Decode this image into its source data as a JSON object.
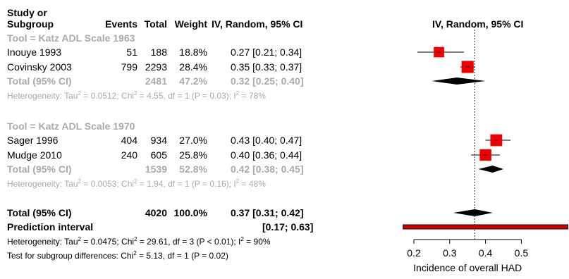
{
  "header": {
    "study_line1": "Study or",
    "study_line2": "Subgroup",
    "events": "Events",
    "total": "Total",
    "weight": "Weight",
    "ci": "IV, Random, 95% CI",
    "plot_title": "IV, Random, 95% CI"
  },
  "groups": [
    {
      "label": "Tool = Katz ADL Scale 1963",
      "studies": [
        {
          "name": "Inouye 1993",
          "events": "51",
          "total": "188",
          "weight": "18.8%",
          "ci": "0.27 [0.21; 0.34]",
          "est": 0.27,
          "lo": 0.21,
          "hi": 0.34,
          "w": 18.8
        },
        {
          "name": "Covinsky 2003",
          "events": "799",
          "total": "2293",
          "weight": "28.4%",
          "ci": "0.35 [0.33; 0.37]",
          "est": 0.35,
          "lo": 0.33,
          "hi": 0.37,
          "w": 28.4
        }
      ],
      "total": {
        "label": "Total (95% CI)",
        "total": "2481",
        "weight": "47.2%",
        "ci": "0.32 [0.25; 0.40]",
        "est": 0.32,
        "lo": 0.25,
        "hi": 0.4
      },
      "het": {
        "pre": "Heterogeneity: Tau",
        "tau": "= 0.0512; Chi",
        "chi": "= 4.55, df = 1 (P = 0.03); I",
        "i2": "= 78%"
      }
    },
    {
      "label": "Tool = Katz ADL Scale 1970",
      "studies": [
        {
          "name": "Sager 1996",
          "events": "404",
          "total": "934",
          "weight": "27.0%",
          "ci": "0.43 [0.40; 0.47]",
          "est": 0.43,
          "lo": 0.4,
          "hi": 0.47,
          "w": 27.0
        },
        {
          "name": "Mudge 2010",
          "events": "240",
          "total": "605",
          "weight": "25.8%",
          "ci": "0.40 [0.36; 0.44]",
          "est": 0.4,
          "lo": 0.36,
          "hi": 0.44,
          "w": 25.8
        }
      ],
      "total": {
        "label": "Total (95% CI)",
        "total": "1539",
        "weight": "52.8%",
        "ci": "0.42 [0.38; 0.45]",
        "est": 0.42,
        "lo": 0.38,
        "hi": 0.45
      },
      "het": {
        "pre": "Heterogeneity: Tau",
        "tau": "= 0.0053; Chi",
        "chi": "= 1.94, df = 1 (P = 0.16); I",
        "i2": "= 48%"
      }
    }
  ],
  "overall": {
    "label": "Total (95% CI)",
    "total": "4020",
    "weight": "100.0%",
    "ci": "0.37 [0.31; 0.42]",
    "est": 0.37,
    "lo": 0.31,
    "hi": 0.42,
    "pi_label": "Prediction interval",
    "pi_ci": "[0.17; 0.63]",
    "pi_lo": 0.17,
    "pi_hi": 0.63,
    "het": {
      "pre": "Heterogeneity: Tau",
      "tau": "= 0.0475; Chi",
      "chi": "= 29.61, df = 3 (P < 0.01); I",
      "i2": "= 90%"
    },
    "subgroup": {
      "pre": "Test for subgroup differences: Chi",
      "post": "= 5.13, df = 1 (P = 0.02)"
    }
  },
  "sup2": "2",
  "chart_data": {
    "type": "forest",
    "xlabel": "Incidence of overall HAD",
    "xticks": [
      0.2,
      0.3,
      0.4,
      0.5
    ],
    "tick_labels": [
      "0.2",
      "0.3",
      "0.4",
      "0.5"
    ],
    "reference_line": 0.37,
    "marker_color": "#ee0000",
    "prediction_color": "#cc0000"
  }
}
